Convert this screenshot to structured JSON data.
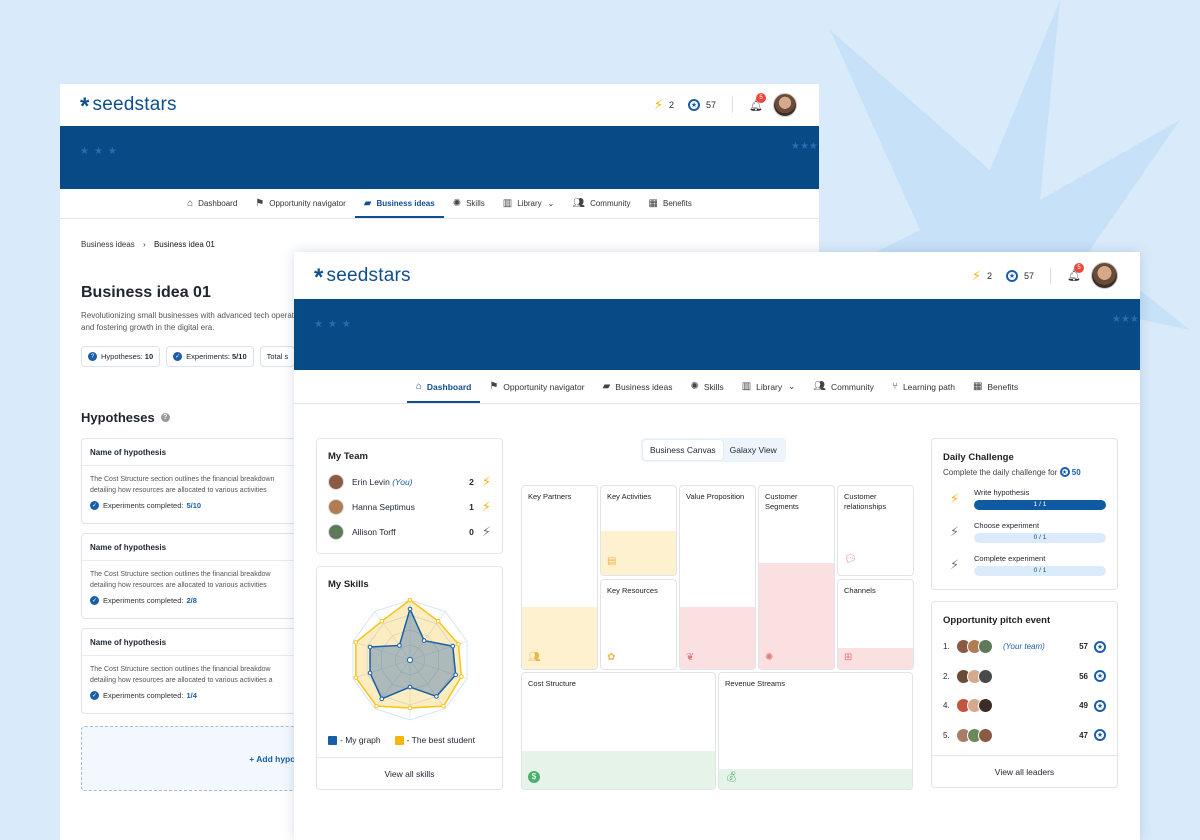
{
  "brand": {
    "name": "seedstars",
    "asterisk": "*"
  },
  "colors": {
    "primary": "#0f4f8f",
    "banner": "#074a85",
    "accent_yellow": "#f5b50a",
    "badge_red": "#e74a3b"
  },
  "back_window": {
    "topbar": {
      "energy": "2",
      "coins": "57",
      "notifications": "5"
    },
    "nav": [
      {
        "label": "Dashboard",
        "icon": "home-icon",
        "active": false
      },
      {
        "label": "Opportunity navigator",
        "icon": "signpost-icon",
        "active": false
      },
      {
        "label": "Business ideas",
        "icon": "briefcase-icon",
        "active": true
      },
      {
        "label": "Skills",
        "icon": "lightbulb-icon",
        "active": false
      },
      {
        "label": "Library",
        "icon": "book-icon",
        "active": false,
        "dropdown": true
      },
      {
        "label": "Community",
        "icon": "users-icon",
        "active": false
      },
      {
        "label": "Benefits",
        "icon": "gift-icon",
        "active": false
      }
    ],
    "breadcrumb": [
      "Business ideas",
      "Business idea 01"
    ],
    "idea": {
      "title": "Business idea 01",
      "description": "Revolutionizing small businesses with advanced tech operations and fostering growth in the digital era.",
      "chips": [
        {
          "label": "Hypotheses:",
          "value": "10"
        },
        {
          "label": "Experiments:",
          "value": "5/10"
        },
        {
          "label": "Total s",
          "value": ""
        }
      ]
    },
    "hypotheses_title": "Hypotheses",
    "hypotheses": [
      {
        "name": "Name of hypothesis",
        "desc1": "The Cost Structure section outlines the financial breakdown",
        "desc2": "detailing how resources are allocated to various activities",
        "exp_label": "Experiments completed:",
        "exp_value": "5/10"
      },
      {
        "name": "Name of hypothesis",
        "desc1": "The Cost Structure section outlines the financial breakdow",
        "desc2": "detailing how resources are allocated to various activities",
        "exp_label": "Experiments completed:",
        "exp_value": "2/8"
      },
      {
        "name": "Name of hypothesis",
        "desc1": "The Cost Structure section outlines the financial breakdow",
        "desc2": "detailing how resources are allocated to various activities a",
        "exp_label": "Experiments completed:",
        "exp_value": "1/4"
      }
    ],
    "add_hypothesis": "+ Add hypothesis"
  },
  "front_window": {
    "topbar": {
      "energy": "2",
      "coins": "57",
      "notifications": "5"
    },
    "nav": [
      {
        "label": "Dashboard",
        "icon": "home-icon",
        "active": true
      },
      {
        "label": "Opportunity navigator",
        "icon": "signpost-icon",
        "active": false
      },
      {
        "label": "Business ideas",
        "icon": "briefcase-icon",
        "active": false
      },
      {
        "label": "Skills",
        "icon": "lightbulb-icon",
        "active": false
      },
      {
        "label": "Library",
        "icon": "book-icon",
        "active": false,
        "dropdown": true
      },
      {
        "label": "Community",
        "icon": "users-icon",
        "active": false
      },
      {
        "label": "Learning path",
        "icon": "path-icon",
        "active": false
      },
      {
        "label": "Benefits",
        "icon": "gift-icon",
        "active": false
      }
    ],
    "team": {
      "title": "My Team",
      "members": [
        {
          "name": "Erin Levin",
          "you": "(You)",
          "score": "2",
          "bolt_color": "#f5b50a"
        },
        {
          "name": "Hanna Septimus",
          "you": "",
          "score": "1",
          "bolt_color": "#f5b50a"
        },
        {
          "name": "Allison Torff",
          "you": "",
          "score": "0",
          "bolt_color": "#777777"
        }
      ]
    },
    "skills": {
      "title": "My Skills",
      "legend": [
        {
          "label": "- My graph",
          "color": "#1a5ea8"
        },
        {
          "label": "- The best student",
          "color": "#f5b50a"
        }
      ],
      "my_graph": [
        0.85,
        0.4,
        0.75,
        0.8,
        0.75,
        0.45,
        0.8,
        0.7,
        0.7,
        0.3
      ],
      "best_student": [
        1,
        0.8,
        0.85,
        0.9,
        0.95,
        0.8,
        0.95,
        0.95,
        0.95,
        0.8
      ],
      "view_all": "View all skills"
    },
    "canvas_toggle": [
      "Business Canvas",
      "Galaxy View"
    ],
    "canvas": {
      "key_partners": "Key Partners",
      "key_activities": "Key Activities",
      "value_proposition": "Value Proposition",
      "customer_segments": "Customer Segments",
      "customer_relationships": "Customer relationships",
      "key_resources": "Key Resources",
      "channels": "Channels",
      "cost_structure": "Cost Structure",
      "revenue_streams": "Revenue Streams"
    },
    "daily": {
      "title": "Daily Challenge",
      "subtitle": "Complete the daily challenge for",
      "reward": "50",
      "items": [
        {
          "label": "Write hypothesis",
          "progress": "1 / 1",
          "done": true
        },
        {
          "label": "Choose  experiment",
          "progress": "0 / 1",
          "done": false
        },
        {
          "label": "Complete experiment",
          "progress": "0 / 1",
          "done": false
        }
      ]
    },
    "pitch": {
      "title": "Opportunity pitch event",
      "rows": [
        {
          "rank": "1.",
          "team": "(Your team)",
          "points": "57"
        },
        {
          "rank": "2.",
          "team": "",
          "points": "56"
        },
        {
          "rank": "4.",
          "team": "",
          "points": "49"
        },
        {
          "rank": "5.",
          "team": "",
          "points": "47"
        }
      ],
      "view_all": "View all leaders"
    }
  }
}
